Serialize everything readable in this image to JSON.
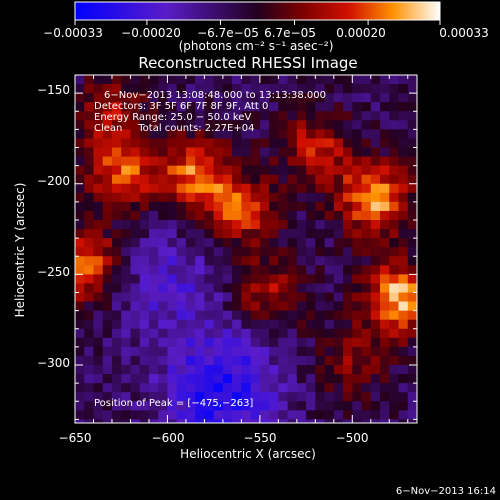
{
  "chart_data": {
    "type": "heatmap",
    "title": "Reconstructed RHESSI Image",
    "xlabel": "Heliocentric X (arcsec)",
    "ylabel": "Heliocentric Y (arcsec)",
    "xlim": [
      -650,
      -465
    ],
    "ylim": [
      -332,
      -140
    ],
    "x_ticks": [
      -650,
      -600,
      -550,
      -500
    ],
    "x_tick_labels": [
      "−650",
      "−600",
      "−550",
      "−500"
    ],
    "y_ticks": [
      -150,
      -200,
      -250,
      -300
    ],
    "y_tick_labels": [
      "−150",
      "−200",
      "−250",
      "−300"
    ],
    "colorbar": {
      "min": -0.00033,
      "max": 0.00033,
      "ticks": [
        -0.00033,
        -0.0002,
        -6.7e-05,
        6.7e-05,
        0.0002,
        0.00033
      ],
      "tick_labels": [
        "−0.00033",
        "−0.00020",
        "−6.7e−05",
        "6.7e−05",
        "0.00020",
        "0.00033"
      ],
      "units": "(photons cm⁻² s⁻¹ asec⁻²)"
    },
    "annotations": [
      "6−Nov−2013 13:08:48.000 to 13:13:38.000",
      "Detectors: 3F 5F 6F 7F 8F 9F, Att 0",
      "Energy Range: 25.0 − 50.0 keV",
      "Clean     Total counts: 2.27E+04"
    ],
    "peak_label": "Position of Peak = [−475,−263]",
    "peak_position": [
      -475,
      -263
    ],
    "bright_regions": [
      {
        "x": -475,
        "y": -263,
        "level": 1.0
      },
      {
        "x": -488,
        "y": -208,
        "level": 0.95
      },
      {
        "x": -645,
        "y": -245,
        "level": 0.9
      },
      {
        "x": -625,
        "y": -195,
        "level": 0.75
      },
      {
        "x": -585,
        "y": -195,
        "level": 0.8
      },
      {
        "x": -560,
        "y": -215,
        "level": 0.7
      },
      {
        "x": -520,
        "y": -180,
        "level": 0.6
      },
      {
        "x": -545,
        "y": -260,
        "level": 0.55
      },
      {
        "x": -630,
        "y": -160,
        "level": 0.5
      },
      {
        "x": -500,
        "y": -300,
        "level": 0.4
      }
    ],
    "dark_regions": [
      {
        "x": -570,
        "y": -315,
        "level": 1.0
      },
      {
        "x": -600,
        "y": -255,
        "level": 0.5
      }
    ]
  },
  "footer_timestamp": "6−Nov−2013 16:14"
}
